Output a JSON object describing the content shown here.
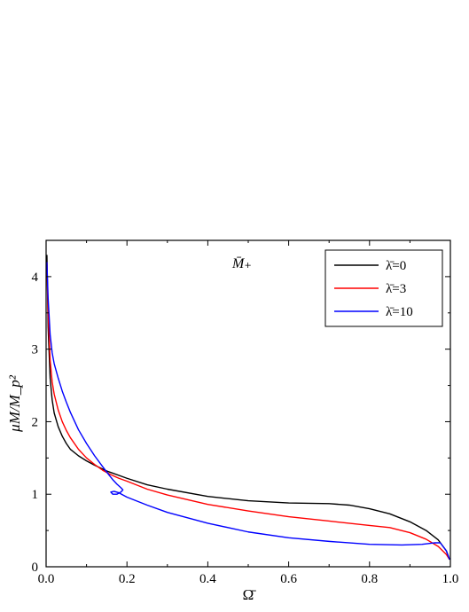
{
  "chart_data": {
    "type": "line",
    "annotation": "M̄₊",
    "xlabel": "Ω̄",
    "ylabel": "μM/M_p²",
    "xlim": [
      0.0,
      1.0
    ],
    "ylim": [
      0.0,
      4.5
    ],
    "xticks": [
      0.0,
      0.2,
      0.4,
      0.6,
      0.8,
      1.0
    ],
    "xtick_labels": [
      "0.0",
      "0.2",
      "0.4",
      "0.6",
      "0.8",
      "1.0"
    ],
    "yticks": [
      0,
      1,
      2,
      3,
      4
    ],
    "ytick_labels": [
      "0",
      "1",
      "2",
      "3",
      "4"
    ],
    "grid": false,
    "legend_position": "top-right",
    "series": [
      {
        "name": "λ̄=0",
        "color": "#000000",
        "x": [
          0.002,
          0.005,
          0.01,
          0.015,
          0.02,
          0.03,
          0.04,
          0.05,
          0.06,
          0.08,
          0.1,
          0.12,
          0.15,
          0.2,
          0.25,
          0.3,
          0.4,
          0.5,
          0.6,
          0.7,
          0.75,
          0.8,
          0.85,
          0.9,
          0.94,
          0.97,
          0.99,
          0.998
        ],
        "y": [
          4.3,
          3.3,
          2.6,
          2.3,
          2.12,
          1.93,
          1.8,
          1.7,
          1.62,
          1.53,
          1.46,
          1.4,
          1.32,
          1.22,
          1.13,
          1.07,
          0.97,
          0.91,
          0.88,
          0.87,
          0.85,
          0.8,
          0.73,
          0.62,
          0.5,
          0.37,
          0.22,
          0.1
        ]
      },
      {
        "name": "λ̄=3",
        "color": "#ff0000",
        "x": [
          0.002,
          0.005,
          0.01,
          0.015,
          0.02,
          0.03,
          0.04,
          0.05,
          0.06,
          0.08,
          0.1,
          0.12,
          0.14,
          0.16,
          0.18,
          0.2,
          0.25,
          0.3,
          0.4,
          0.5,
          0.6,
          0.7,
          0.8,
          0.85,
          0.9,
          0.94,
          0.97,
          0.99,
          0.998
        ],
        "y": [
          4.2,
          3.5,
          2.85,
          2.55,
          2.38,
          2.16,
          2.0,
          1.88,
          1.78,
          1.62,
          1.5,
          1.41,
          1.33,
          1.27,
          1.22,
          1.18,
          1.07,
          0.99,
          0.86,
          0.77,
          0.69,
          0.63,
          0.57,
          0.54,
          0.47,
          0.38,
          0.28,
          0.17,
          0.1
        ]
      },
      {
        "name": "λ̄=10",
        "color": "#0000ff",
        "x": [
          0.002,
          0.005,
          0.01,
          0.015,
          0.02,
          0.03,
          0.04,
          0.05,
          0.06,
          0.08,
          0.1,
          0.12,
          0.14,
          0.155,
          0.165,
          0.175,
          0.185,
          0.19,
          0.185,
          0.175,
          0.165,
          0.16,
          0.168,
          0.18,
          0.2,
          0.25,
          0.3,
          0.4,
          0.5,
          0.6,
          0.7,
          0.8,
          0.88,
          0.93,
          0.96,
          0.975,
          0.99,
          0.998
        ],
        "y": [
          4.2,
          3.7,
          3.2,
          2.95,
          2.8,
          2.6,
          2.42,
          2.27,
          2.13,
          1.89,
          1.7,
          1.53,
          1.38,
          1.27,
          1.2,
          1.14,
          1.09,
          1.06,
          1.03,
          1.0,
          1.0,
          1.03,
          1.04,
          1.02,
          0.96,
          0.85,
          0.75,
          0.6,
          0.48,
          0.4,
          0.35,
          0.31,
          0.3,
          0.31,
          0.33,
          0.33,
          0.22,
          0.1
        ]
      }
    ]
  }
}
